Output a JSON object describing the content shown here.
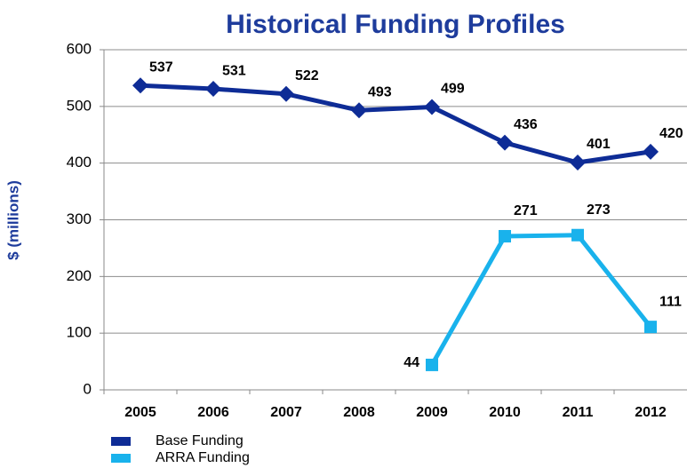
{
  "chart_data": {
    "type": "line",
    "title": "Historical Funding Profiles",
    "y_label": "$ (millions)",
    "categories": [
      "2005",
      "2006",
      "2007",
      "2008",
      "2009",
      "2010",
      "2011",
      "2012"
    ],
    "series": [
      {
        "name": "Base Funding",
        "color": "#0e2c96",
        "marker": "diamond",
        "values": [
          537,
          531,
          522,
          493,
          499,
          436,
          401,
          420
        ]
      },
      {
        "name": "ARRA Funding",
        "color": "#19b2ec",
        "marker": "square",
        "values": [
          null,
          null,
          null,
          null,
          44,
          271,
          273,
          111
        ]
      }
    ],
    "ylim": [
      0,
      600
    ],
    "yticks": [
      0,
      100,
      200,
      300,
      400,
      500,
      600
    ],
    "grid": true,
    "legend": "bottom-left"
  }
}
